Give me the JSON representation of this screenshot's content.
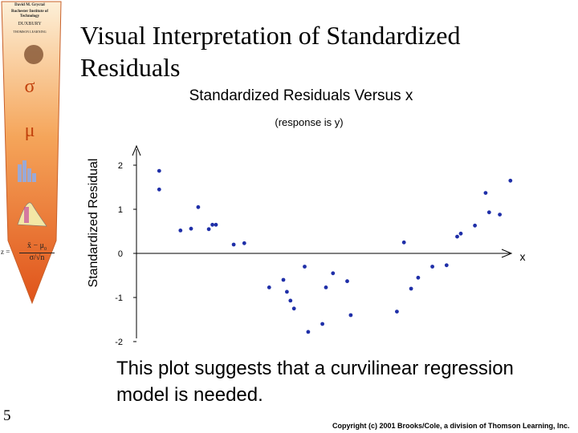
{
  "banner": {
    "author": "David M. Gryctal",
    "institute": "Rochester Institute of Technology",
    "publisher": "DUXBURY",
    "publisher_sub": "THOMSON LEARNING",
    "symbol_sigma": "σ",
    "symbol_mu": "μ",
    "formula_z": "z =",
    "formula_num": "x̄ − μ",
    "formula_num_sub": "0",
    "formula_den": "σ/√n"
  },
  "slide": {
    "title": "Visual Interpretation of Standardized Residuals",
    "caption": "This plot suggests that a curvilinear regression model is needed.",
    "number": "5",
    "copyright": "Copyright (c) 2001 Brooks/Cole, a division of Thomson Learning, Inc."
  },
  "chart_data": {
    "type": "scatter",
    "title": "Standardized Residuals Versus x",
    "subtitle": "(response is y)",
    "xlabel": "x",
    "ylabel": "Standardized Residual",
    "ylim": [
      -2,
      2
    ],
    "yticks": [
      -2,
      -1,
      0,
      1,
      2
    ],
    "xlim": [
      0,
      100
    ],
    "x_tick_labels": "none",
    "grid": false,
    "points": [
      {
        "x": 3,
        "y": 1.87
      },
      {
        "x": 3,
        "y": 1.45
      },
      {
        "x": 9,
        "y": 0.52
      },
      {
        "x": 12,
        "y": 0.56
      },
      {
        "x": 14,
        "y": 1.05
      },
      {
        "x": 17,
        "y": 0.55
      },
      {
        "x": 18,
        "y": 0.65
      },
      {
        "x": 19,
        "y": 0.65
      },
      {
        "x": 24,
        "y": 0.2
      },
      {
        "x": 27,
        "y": 0.23
      },
      {
        "x": 34,
        "y": -0.77
      },
      {
        "x": 38,
        "y": -0.6
      },
      {
        "x": 39,
        "y": -0.87
      },
      {
        "x": 40,
        "y": -1.07
      },
      {
        "x": 41,
        "y": -1.25
      },
      {
        "x": 44,
        "y": -0.3
      },
      {
        "x": 45,
        "y": -1.78
      },
      {
        "x": 49,
        "y": -1.6
      },
      {
        "x": 50,
        "y": -0.77
      },
      {
        "x": 52,
        "y": -0.45
      },
      {
        "x": 57,
        "y": -1.4
      },
      {
        "x": 56,
        "y": -0.63
      },
      {
        "x": 70,
        "y": -1.32
      },
      {
        "x": 72,
        "y": 0.25
      },
      {
        "x": 74,
        "y": -0.8
      },
      {
        "x": 76,
        "y": -0.55
      },
      {
        "x": 80,
        "y": -0.3
      },
      {
        "x": 84,
        "y": -0.27
      },
      {
        "x": 87,
        "y": 0.38
      },
      {
        "x": 88,
        "y": 0.45
      },
      {
        "x": 92,
        "y": 0.63
      },
      {
        "x": 95,
        "y": 1.37
      },
      {
        "x": 96,
        "y": 0.93
      },
      {
        "x": 99,
        "y": 0.88
      },
      {
        "x": 102,
        "y": 1.65
      }
    ]
  },
  "colors": {
    "points": "#1f2fa8",
    "axis": "#000000",
    "banner_top": "#fbe7c6",
    "banner_bottom": "#e0531a"
  }
}
